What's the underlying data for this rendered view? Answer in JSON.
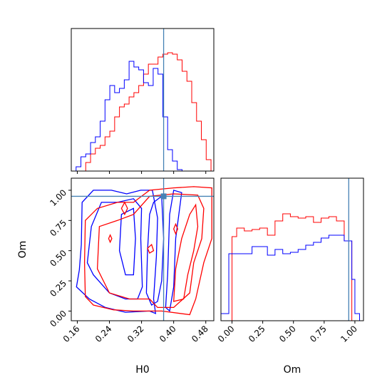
{
  "chart_data": {
    "type": "corner-plot",
    "parameters": [
      "H0",
      "Om"
    ],
    "truths": {
      "H0": 0.375,
      "Om": 0.95
    },
    "colors": {
      "red": "#ff0000",
      "blue": "#0000ff",
      "truth": "#4682b4"
    },
    "panels": [
      {
        "id": "h0-histogram",
        "type": "histogram",
        "x_param": "H0",
        "xlim": [
          0.145,
          0.5
        ],
        "ylim": [
          0,
          1.0
        ],
        "yticks_visible": false,
        "xticks": [
          0.16,
          0.24,
          0.32,
          0.4,
          0.48
        ],
        "xticklabels_visible": false,
        "bin_edges": [
          0.145,
          0.157,
          0.169,
          0.181,
          0.193,
          0.205,
          0.217,
          0.229,
          0.241,
          0.253,
          0.265,
          0.277,
          0.289,
          0.301,
          0.313,
          0.325,
          0.337,
          0.349,
          0.361,
          0.373,
          0.385,
          0.397,
          0.409,
          0.421,
          0.433,
          0.445,
          0.457,
          0.469,
          0.481,
          0.493,
          0.5
        ],
        "series": [
          {
            "color": "red",
            "values": [
              0.0,
              0.0,
              0.0,
              0.06,
              0.12,
              0.16,
              0.18,
              0.24,
              0.28,
              0.38,
              0.45,
              0.47,
              0.52,
              0.55,
              0.6,
              0.68,
              0.75,
              0.75,
              0.8,
              0.82,
              0.83,
              0.82,
              0.78,
              0.7,
              0.63,
              0.48,
              0.35,
              0.22,
              0.08,
              0.0
            ]
          },
          {
            "color": "blue",
            "values": [
              0.0,
              0.03,
              0.1,
              0.12,
              0.2,
              0.24,
              0.35,
              0.5,
              0.6,
              0.55,
              0.58,
              0.64,
              0.77,
              0.73,
              0.71,
              0.62,
              0.6,
              0.72,
              0.68,
              0.38,
              0.15,
              0.07,
              0.01,
              0.0,
              0.0,
              0.0,
              0.0,
              0.0,
              0.0,
              0.0
            ]
          }
        ]
      },
      {
        "id": "om-histogram",
        "type": "histogram",
        "x_param": "Om",
        "xlim": [
          -0.09,
          1.07
        ],
        "ylim": [
          0,
          1.0
        ],
        "yticks_visible": false,
        "xticks": [
          0.0,
          0.25,
          0.5,
          0.75,
          1.0
        ],
        "xticklabels": [
          "0.00",
          "0.25",
          "0.50",
          "0.75",
          "1.00"
        ],
        "xlabel": "Om",
        "bin_edges": [
          -0.09,
          -0.026,
          0.0,
          0.038,
          0.1,
          0.163,
          0.225,
          0.288,
          0.35,
          0.413,
          0.475,
          0.538,
          0.6,
          0.663,
          0.725,
          0.788,
          0.85,
          0.913,
          0.975,
          1.0,
          1.038,
          1.07
        ],
        "series": [
          {
            "color": "red",
            "values": [
              0.0,
              0.0,
              0.59,
              0.65,
              0.63,
              0.64,
              0.65,
              0.6,
              0.7,
              0.75,
              0.73,
              0.72,
              0.73,
              0.69,
              0.72,
              0.73,
              0.7,
              0.56,
              0.0,
              0.0,
              0.0
            ]
          },
          {
            "color": "blue",
            "values": [
              0.05,
              0.47,
              0.47,
              0.47,
              0.47,
              0.52,
              0.52,
              0.46,
              0.5,
              0.47,
              0.48,
              0.5,
              0.53,
              0.55,
              0.58,
              0.6,
              0.6,
              0.56,
              0.29,
              0.05,
              0.0
            ]
          }
        ]
      },
      {
        "id": "h0-om-contour",
        "type": "contour",
        "x_param": "H0",
        "y_param": "Om",
        "xlim": [
          0.145,
          0.5
        ],
        "ylim": [
          -0.08,
          1.1
        ],
        "xticks": [
          0.16,
          0.24,
          0.32,
          0.4,
          0.48
        ],
        "xticklabels": [
          "0.16",
          "0.24",
          "0.32",
          "0.40",
          "0.48"
        ],
        "yticks": [
          0.0,
          0.25,
          0.5,
          0.75,
          1.0
        ],
        "yticklabels": [
          "0.00",
          "0.25",
          "0.50",
          "0.75",
          "1.00"
        ],
        "xlabel": "H0",
        "ylabel": "Om",
        "contours": [
          {
            "color": "blue",
            "points": [
              [
                0.158,
                0.2
              ],
              [
                0.165,
                0.34
              ],
              [
                0.17,
                0.55
              ],
              [
                0.172,
                0.9
              ],
              [
                0.2,
                1.0
              ],
              [
                0.245,
                1.0
              ],
              [
                0.283,
                0.97
              ],
              [
                0.318,
                1.0
              ],
              [
                0.347,
                1.0
              ],
              [
                0.36,
                0.77
              ],
              [
                0.357,
                0.45
              ],
              [
                0.35,
                0.1
              ],
              [
                0.355,
                -0.02
              ],
              [
                0.34,
                0.0
              ],
              [
                0.28,
                -0.01
              ],
              [
                0.23,
                0.03
              ],
              [
                0.19,
                0.1
              ],
              [
                0.158,
                0.2
              ]
            ]
          },
          {
            "color": "blue",
            "points": [
              [
                0.185,
                0.4
              ],
              [
                0.195,
                0.7
              ],
              [
                0.22,
                0.9
              ],
              [
                0.26,
                0.9
              ],
              [
                0.3,
                0.93
              ],
              [
                0.32,
                0.85
              ],
              [
                0.318,
                0.6
              ],
              [
                0.322,
                0.2
              ],
              [
                0.31,
                0.1
              ],
              [
                0.28,
                0.1
              ],
              [
                0.24,
                0.15
              ],
              [
                0.2,
                0.3
              ],
              [
                0.185,
                0.4
              ]
            ]
          },
          {
            "color": "blue",
            "points": [
              [
                0.265,
                0.5
              ],
              [
                0.27,
                0.8
              ],
              [
                0.3,
                0.85
              ],
              [
                0.305,
                0.6
              ],
              [
                0.3,
                0.3
              ],
              [
                0.28,
                0.3
              ],
              [
                0.265,
                0.5
              ]
            ]
          },
          {
            "color": "blue",
            "points": [
              [
                0.332,
                0.15
              ],
              [
                0.335,
                0.5
              ],
              [
                0.34,
                0.8
              ],
              [
                0.35,
                0.9
              ],
              [
                0.37,
                0.95
              ],
              [
                0.375,
                0.6
              ],
              [
                0.37,
                0.25
              ],
              [
                0.36,
                0.08
              ],
              [
                0.345,
                0.05
              ],
              [
                0.332,
                0.15
              ]
            ]
          },
          {
            "color": "blue",
            "points": [
              [
                0.38,
                0.03
              ],
              [
                0.385,
                0.3
              ],
              [
                0.39,
                0.8
              ],
              [
                0.4,
                1.0
              ],
              [
                0.42,
                0.98
              ],
              [
                0.405,
                0.6
              ],
              [
                0.4,
                0.2
              ],
              [
                0.39,
                0.0
              ],
              [
                0.38,
                0.03
              ]
            ]
          },
          {
            "color": "red",
            "points": [
              [
                0.18,
                0.12
              ],
              [
                0.178,
                0.4
              ],
              [
                0.18,
                0.75
              ],
              [
                0.21,
                0.85
              ],
              [
                0.26,
                0.9
              ],
              [
                0.3,
                0.9
              ],
              [
                0.34,
                1.0
              ],
              [
                0.4,
                1.02
              ],
              [
                0.45,
                1.03
              ],
              [
                0.495,
                1.02
              ],
              [
                0.495,
                0.6
              ],
              [
                0.475,
                0.4
              ],
              [
                0.455,
                0.1
              ],
              [
                0.44,
                -0.03
              ],
              [
                0.37,
                0.0
              ],
              [
                0.3,
                0.0
              ],
              [
                0.25,
                0.01
              ],
              [
                0.2,
                0.05
              ],
              [
                0.18,
                0.12
              ]
            ]
          },
          {
            "color": "red",
            "points": [
              [
                0.21,
                0.35
              ],
              [
                0.215,
                0.7
              ],
              [
                0.26,
                0.75
              ],
              [
                0.3,
                0.8
              ],
              [
                0.34,
                0.95
              ],
              [
                0.4,
                0.97
              ],
              [
                0.46,
                0.96
              ],
              [
                0.475,
                0.85
              ],
              [
                0.47,
                0.6
              ],
              [
                0.45,
                0.4
              ],
              [
                0.44,
                0.15
              ],
              [
                0.4,
                0.03
              ],
              [
                0.36,
                0.03
              ],
              [
                0.34,
                0.1
              ],
              [
                0.29,
                0.1
              ],
              [
                0.24,
                0.15
              ],
              [
                0.21,
                0.35
              ]
            ]
          },
          {
            "color": "red",
            "points": [
              [
                0.4,
                0.08
              ],
              [
                0.405,
                0.35
              ],
              [
                0.42,
                0.6
              ],
              [
                0.44,
                0.8
              ],
              [
                0.455,
                0.88
              ],
              [
                0.46,
                0.7
              ],
              [
                0.45,
                0.5
              ],
              [
                0.435,
                0.3
              ],
              [
                0.425,
                0.1
              ],
              [
                0.4,
                0.08
              ]
            ]
          },
          {
            "color": "red",
            "points": [
              [
                0.27,
                0.85
              ],
              [
                0.278,
                0.9
              ],
              [
                0.285,
                0.85
              ],
              [
                0.278,
                0.8
              ],
              [
                0.27,
                0.85
              ]
            ]
          },
          {
            "color": "red",
            "points": [
              [
                0.238,
                0.6
              ],
              [
                0.242,
                0.63
              ],
              [
                0.246,
                0.6
              ],
              [
                0.242,
                0.57
              ],
              [
                0.238,
                0.6
              ]
            ]
          },
          {
            "color": "red",
            "points": [
              [
                0.335,
                0.52
              ],
              [
                0.345,
                0.55
              ],
              [
                0.35,
                0.5
              ],
              [
                0.34,
                0.48
              ],
              [
                0.335,
                0.52
              ]
            ]
          },
          {
            "color": "red",
            "points": [
              [
                0.4,
                0.68
              ],
              [
                0.405,
                0.72
              ],
              [
                0.41,
                0.68
              ],
              [
                0.405,
                0.64
              ],
              [
                0.4,
                0.68
              ]
            ]
          }
        ]
      }
    ]
  }
}
